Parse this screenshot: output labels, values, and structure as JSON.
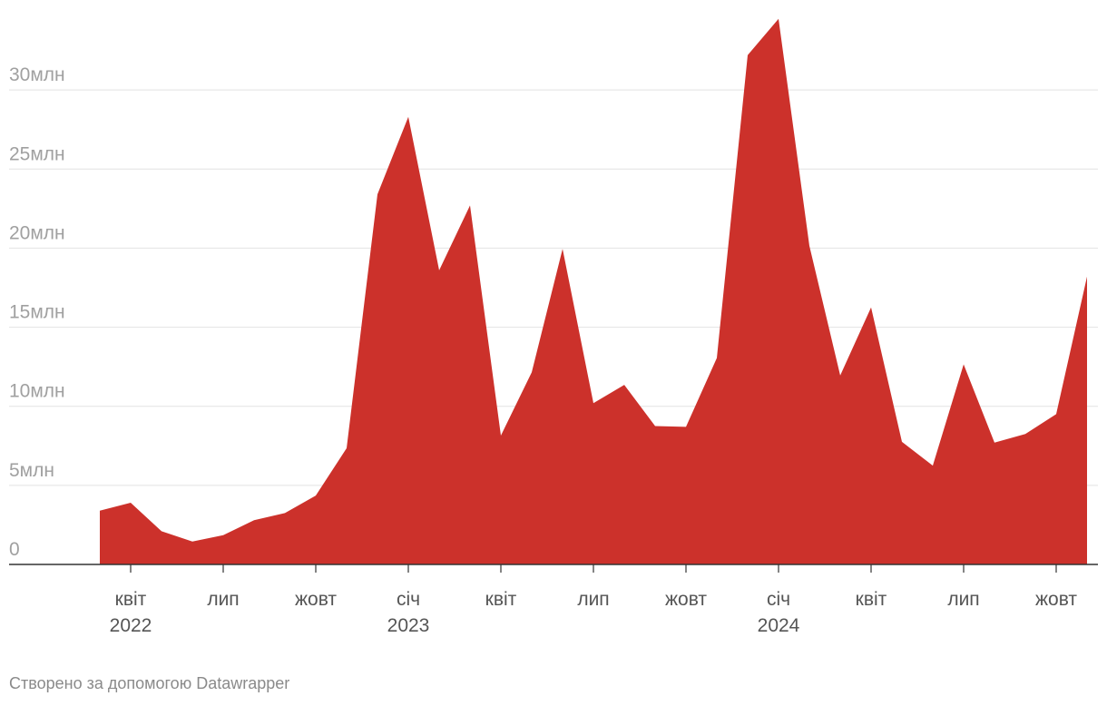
{
  "chart_data": {
    "type": "area",
    "color": "#cc312b",
    "ylim": [
      0,
      35000000
    ],
    "y_ticks": [
      {
        "value": 0,
        "label": "0"
      },
      {
        "value": 5000000,
        "label": "5млн"
      },
      {
        "value": 10000000,
        "label": "10млн"
      },
      {
        "value": 15000000,
        "label": "15млн"
      },
      {
        "value": 20000000,
        "label": "20млн"
      },
      {
        "value": 25000000,
        "label": "25млн"
      },
      {
        "value": 30000000,
        "label": "30млн"
      }
    ],
    "x_ticks": [
      {
        "date": "2022-04",
        "label": "квіт",
        "year": "2022"
      },
      {
        "date": "2022-07",
        "label": "лип",
        "year": ""
      },
      {
        "date": "2022-10",
        "label": "жовт",
        "year": ""
      },
      {
        "date": "2023-01",
        "label": "січ",
        "year": "2023"
      },
      {
        "date": "2023-04",
        "label": "квіт",
        "year": ""
      },
      {
        "date": "2023-07",
        "label": "лип",
        "year": ""
      },
      {
        "date": "2023-10",
        "label": "жовт",
        "year": ""
      },
      {
        "date": "2024-01",
        "label": "січ",
        "year": "2024"
      },
      {
        "date": "2024-04",
        "label": "квіт",
        "year": ""
      },
      {
        "date": "2024-07",
        "label": "лип",
        "year": ""
      },
      {
        "date": "2024-10",
        "label": "жовт",
        "year": ""
      }
    ],
    "x": [
      "2022-03",
      "2022-04",
      "2022-05",
      "2022-06",
      "2022-07",
      "2022-08",
      "2022-09",
      "2022-10",
      "2022-11",
      "2022-12",
      "2023-01",
      "2023-02",
      "2023-03",
      "2023-04",
      "2023-05",
      "2023-06",
      "2023-07",
      "2023-08",
      "2023-09",
      "2023-10",
      "2023-11",
      "2023-12",
      "2024-01",
      "2024-02",
      "2024-03",
      "2024-04",
      "2024-05",
      "2024-06",
      "2024-07",
      "2024-08",
      "2024-09",
      "2024-10",
      "2024-11"
    ],
    "values": [
      3400000,
      3900000,
      2100000,
      1450000,
      1850000,
      2800000,
      3250000,
      4350000,
      7350000,
      23400000,
      28300000,
      18600000,
      22700000,
      8150000,
      12150000,
      19950000,
      10200000,
      11350000,
      8750000,
      8700000,
      13050000,
      32200000,
      34500000,
      20150000,
      11950000,
      16250000,
      7750000,
      6250000,
      12650000,
      7700000,
      8250000,
      9500000,
      18200000
    ]
  },
  "footer": {
    "credit": "Створено за допомогою Datawrapper"
  }
}
